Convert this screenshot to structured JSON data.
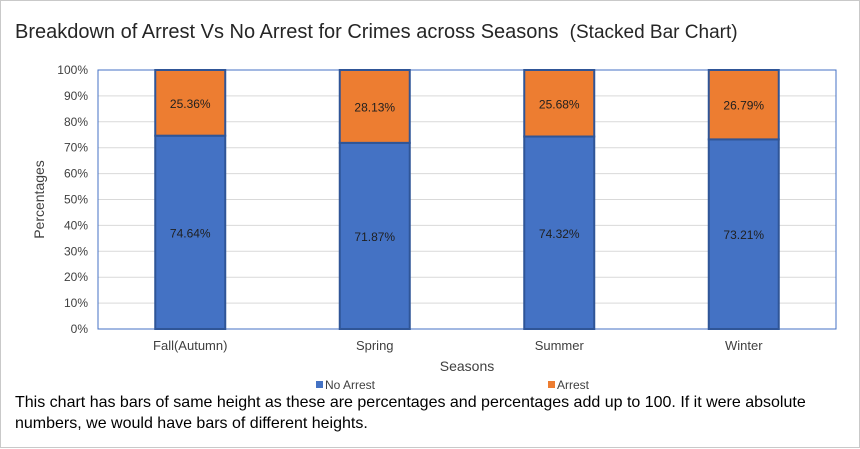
{
  "chart_data": {
    "type": "bar",
    "stacked": true,
    "title": "Breakdown of Arrest Vs No Arrest for Crimes across Seasons",
    "subtitle": "(Stacked Bar Chart)",
    "xlabel": "Seasons",
    "ylabel": "Percentages",
    "ylim": [
      0,
      100
    ],
    "yticks": [
      "0%",
      "10%",
      "20%",
      "30%",
      "40%",
      "50%",
      "60%",
      "70%",
      "80%",
      "90%",
      "100%"
    ],
    "categories": [
      "Fall(Autumn)",
      "Spring",
      "Summer",
      "Winter"
    ],
    "series": [
      {
        "name": "No Arrest",
        "color": "#4472c4",
        "values": [
          74.64,
          71.87,
          74.32,
          73.21
        ],
        "labels": [
          "74.64%",
          "71.87%",
          "74.32%",
          "73.21%"
        ]
      },
      {
        "name": "Arrest",
        "color": "#ed7d31",
        "values": [
          25.36,
          28.13,
          25.68,
          26.79
        ],
        "labels": [
          "25.36%",
          "28.13%",
          "25.68%",
          "26.79%"
        ]
      }
    ],
    "grid": true,
    "legend_position": "bottom"
  },
  "note": "This chart has bars of same height as these are percentages and percentages add up to 100. If it were absolute numbers, we would have bars of different heights."
}
